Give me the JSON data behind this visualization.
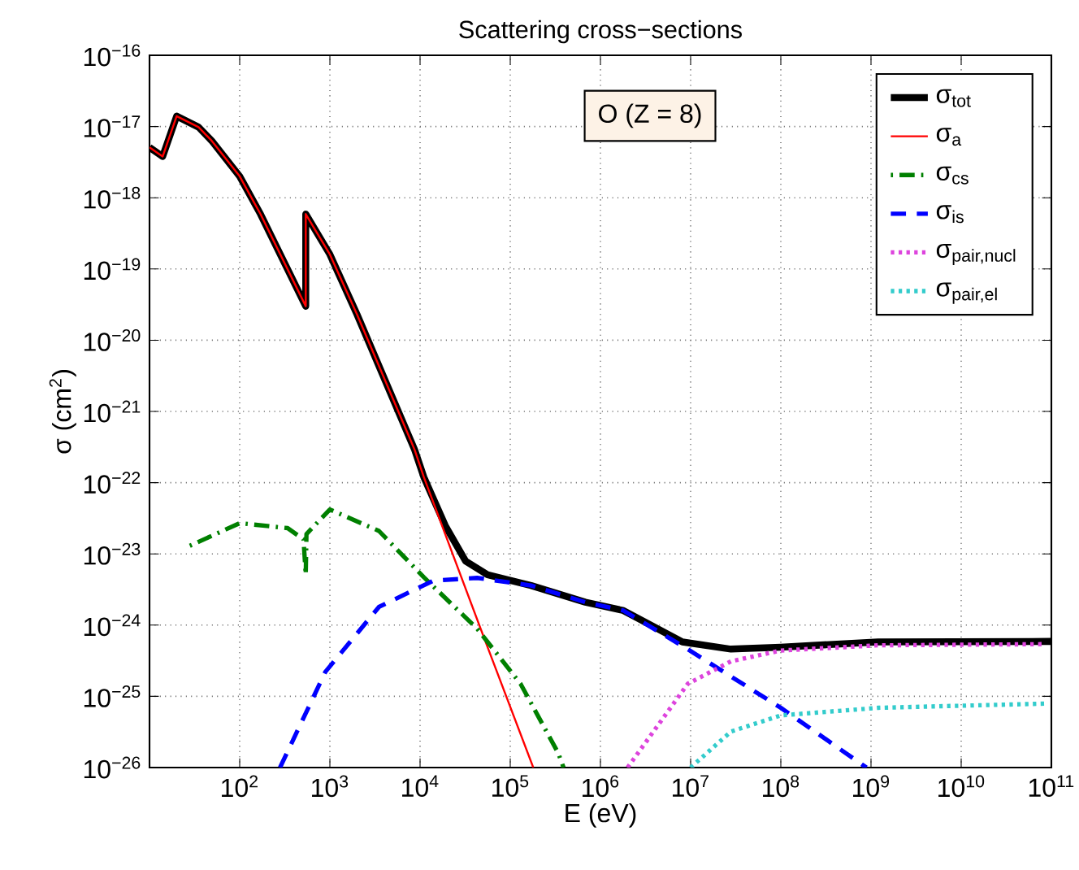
{
  "chart_data": {
    "type": "line",
    "title": "Scattering cross−sections",
    "xlabel": "E (eV)",
    "ylabel": "σ (cm$^{2}$)",
    "annotations": [
      "O (Z = 8)"
    ],
    "log": "xy",
    "grid": true,
    "legend": "top right",
    "xlim": [
      10,
      100000000000
    ],
    "ylim": [
      1e-26,
      1e-16
    ],
    "xticks": [
      {
        "value": 100,
        "label": "10$^{2}$"
      },
      {
        "value": 1000,
        "label": "10$^{3}$"
      },
      {
        "value": 10000,
        "label": "10$^{4}$"
      },
      {
        "value": 100000,
        "label": "10$^{5}$"
      },
      {
        "value": 1000000,
        "label": "10$^{6}$"
      },
      {
        "value": 10000000,
        "label": "10$^{7}$"
      },
      {
        "value": 100000000,
        "label": "10$^{8}$"
      },
      {
        "value": 1000000000,
        "label": "10$^{9}$"
      },
      {
        "value": 10000000000,
        "label": "10$^{10}$"
      },
      {
        "value": 100000000000,
        "label": "10$^{11}$"
      }
    ],
    "yticks": [
      {
        "value": 1e-26,
        "label": "10$^{−26}$"
      },
      {
        "value": 1e-25,
        "label": "10$^{−25}$"
      },
      {
        "value": 1e-24,
        "label": "10$^{−24}$"
      },
      {
        "value": 1e-23,
        "label": "10$^{−23}$"
      },
      {
        "value": 1e-22,
        "label": "10$^{−22}$"
      },
      {
        "value": 1e-21,
        "label": "10$^{−21}$"
      },
      {
        "value": 1e-20,
        "label": "10$^{−20}$"
      },
      {
        "value": 1e-19,
        "label": "10$^{−19}$"
      },
      {
        "value": 1e-18,
        "label": "10$^{−18}$"
      },
      {
        "value": 1e-17,
        "label": "10$^{−17}$"
      },
      {
        "value": 1e-16,
        "label": "10$^{−16}$"
      }
    ],
    "series": [
      {
        "name": "σ$_{tot}$",
        "color": "#000000",
        "line_style": "solid",
        "x": [
          10,
          14,
          20,
          35,
          49,
          100,
          170,
          540,
          540,
          1000,
          2000,
          8700,
          11000,
          19000,
          32000,
          56000,
          170000,
          680000,
          1800000,
          8100000,
          28000000,
          100000000,
          1200000000,
          100000000000
        ],
        "values": [
          5.1e-18,
          3.8e-18,
          1.4e-17,
          9.8e-18,
          6.3e-18,
          2e-18,
          5.9e-19,
          3e-20,
          5.9e-19,
          1.6e-19,
          2.3e-20,
          2.9e-22,
          1.2e-22,
          2.5e-23,
          7.9e-24,
          5.1e-24,
          3.6e-24,
          2.1e-24,
          1.6e-24,
          5.8e-25,
          4.6e-25,
          4.9e-25,
          5.8e-25,
          5.9e-25
        ]
      },
      {
        "name": "σ$_{a}$",
        "color": "#ff0000",
        "line_style": "solid",
        "x": [
          10,
          14,
          20,
          35,
          49,
          100,
          170,
          540,
          540,
          1000,
          2000,
          8700,
          11000,
          52000,
          180000
        ],
        "values": [
          5.1e-18,
          3.8e-18,
          1.4e-17,
          9.8e-18,
          6.3e-18,
          2e-18,
          5.9e-19,
          3e-20,
          5.9e-19,
          1.6e-19,
          2.3e-20,
          2.9e-22,
          1.2e-22,
          6.3e-25,
          1e-26
        ]
      },
      {
        "name": "σ$_{cs}$",
        "color": "#008000",
        "line_style": "dashdot",
        "x": [
          28,
          100,
          340,
          510,
          540,
          550,
          1000,
          3500,
          11000,
          43000,
          130000,
          340000,
          390000
        ],
        "values": [
          1.3e-23,
          2.7e-23,
          2.3e-23,
          1.6e-23,
          5.1e-24,
          1.9e-23,
          4.2e-23,
          2.1e-23,
          4.7e-24,
          8.9e-25,
          1.5e-25,
          1.6e-26,
          1e-26
        ]
      },
      {
        "name": "σ$_{is}$",
        "color": "#0000ff",
        "line_style": "dashed",
        "x": [
          280,
          890,
          3500,
          14000,
          43000,
          170000,
          680000,
          1800000,
          8100000,
          100000000,
          890000000
        ],
        "values": [
          1e-26,
          2.2e-25,
          1.8e-24,
          4.2e-24,
          4.6e-24,
          3.6e-24,
          2.1e-24,
          1.6e-24,
          5.1e-25,
          6.9e-26,
          1e-26
        ]
      },
      {
        "name": "σ$_{pair,nucl}$",
        "color": "#dd44dd",
        "line_style": "dotted",
        "x": [
          2000000,
          9300000,
          28000000,
          100000000,
          1200000000,
          85000000000
        ],
        "values": [
          1e-26,
          1.5e-25,
          3.1e-25,
          4.4e-25,
          5.2e-25,
          5.4e-25
        ]
      },
      {
        "name": "σ$_{pair,el}$",
        "color": "#33cccc",
        "line_style": "dotted",
        "x": [
          10000000,
          28000000,
          100000000,
          1200000000,
          85000000000
        ],
        "values": [
          1e-26,
          3.2e-26,
          5.4e-26,
          6.9e-26,
          7.9e-26
        ]
      }
    ]
  }
}
